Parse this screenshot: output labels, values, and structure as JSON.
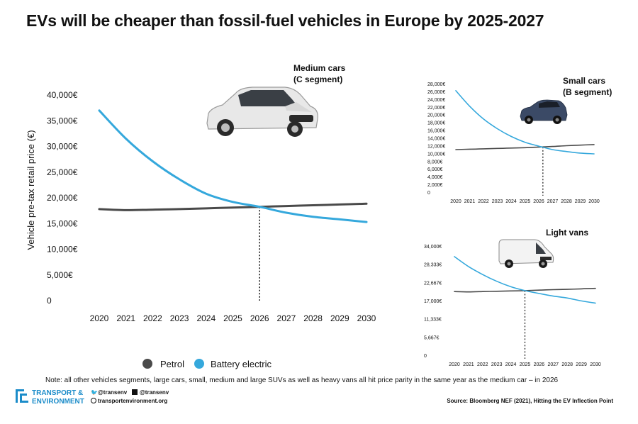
{
  "title": "EVs will be cheaper than fossil-fuel vehicles in Europe by 2025-2027",
  "colors": {
    "petrol": "#4a4a4a",
    "electric": "#35a8dc",
    "brand": "#1b8cc9"
  },
  "legend": [
    {
      "label": "Petrol",
      "color": "#4a4a4a"
    },
    {
      "label": "Battery electric",
      "color": "#35a8dc"
    }
  ],
  "note": "Note: all other vehicles segments, large cars, small, medium and large SUVs as well as heavy vans all hit price parity in the same year as the medium car – in 2026",
  "source": "Source: Bloomberg NEF (2021), Hitting the EV Inflection Point",
  "branding": {
    "name_line1": "TRANSPORT &",
    "name_line2": "ENVIRONMENT",
    "twitter": "@transenv",
    "facebook": "@transenv",
    "website": "transportenvironment.org"
  },
  "chart_data": [
    {
      "type": "line",
      "title_line1": "Medium cars",
      "title_line2": "(C segment)",
      "ylabel": "Vehicle pre-tax retail price (€)",
      "x": [
        2020,
        2021,
        2022,
        2023,
        2024,
        2025,
        2026,
        2027,
        2028,
        2029,
        2030
      ],
      "yticks": [
        "0",
        "5,000€",
        "10,000€",
        "15,000€",
        "20,000€",
        "25,000€",
        "30,000€",
        "35,000€",
        "40,000€"
      ],
      "ylim": [
        0,
        40000
      ],
      "parity_year": 2026,
      "series": [
        {
          "name": "Petrol",
          "values": [
            17800,
            17600,
            17700,
            17800,
            17950,
            18100,
            18250,
            18400,
            18550,
            18700,
            18850
          ]
        },
        {
          "name": "Battery electric",
          "values": [
            37000,
            31500,
            27100,
            23600,
            20800,
            19200,
            18250,
            17100,
            16300,
            15800,
            15300
          ]
        }
      ]
    },
    {
      "type": "line",
      "title_line1": "Small cars",
      "title_line2": "(B segment)",
      "x": [
        2020,
        2021,
        2022,
        2023,
        2024,
        2025,
        2026,
        2027,
        2028,
        2029,
        2030
      ],
      "yticks": [
        "0",
        "2,000€",
        "4,000€",
        "6,000€",
        "8,000€",
        "10,000€",
        "12,000€",
        "14,000€",
        "16,000€",
        "18,000€",
        "20,000€",
        "22,000€",
        "24,000€",
        "26,000€",
        "28,000€"
      ],
      "ylim": [
        0,
        28000
      ],
      "parity_year": 2026.3,
      "series": [
        {
          "name": "Petrol",
          "values": [
            10800,
            10900,
            11000,
            11100,
            11200,
            11300,
            11450,
            11600,
            11800,
            11950,
            12100
          ]
        },
        {
          "name": "Battery electric",
          "values": [
            26000,
            22000,
            18700,
            16200,
            14200,
            12700,
            11700,
            10800,
            10300,
            9900,
            9700
          ]
        }
      ]
    },
    {
      "type": "line",
      "title_line1": "Light vans",
      "x": [
        2020,
        2021,
        2022,
        2023,
        2024,
        2025,
        2026,
        2027,
        2028,
        2029,
        2030
      ],
      "yticks": [
        "0",
        "5,667€",
        "11,333€",
        "17,000€",
        "22,667€",
        "28,333€",
        "34,000€"
      ],
      "ylim": [
        0,
        34000
      ],
      "parity_year": 2025,
      "series": [
        {
          "name": "Petrol",
          "values": [
            19600,
            19500,
            19600,
            19700,
            19800,
            19900,
            20050,
            20200,
            20300,
            20450,
            20600
          ]
        },
        {
          "name": "Battery electric",
          "values": [
            30500,
            27400,
            24900,
            22800,
            21100,
            19900,
            19000,
            18200,
            17600,
            16700,
            16000
          ]
        }
      ]
    }
  ]
}
